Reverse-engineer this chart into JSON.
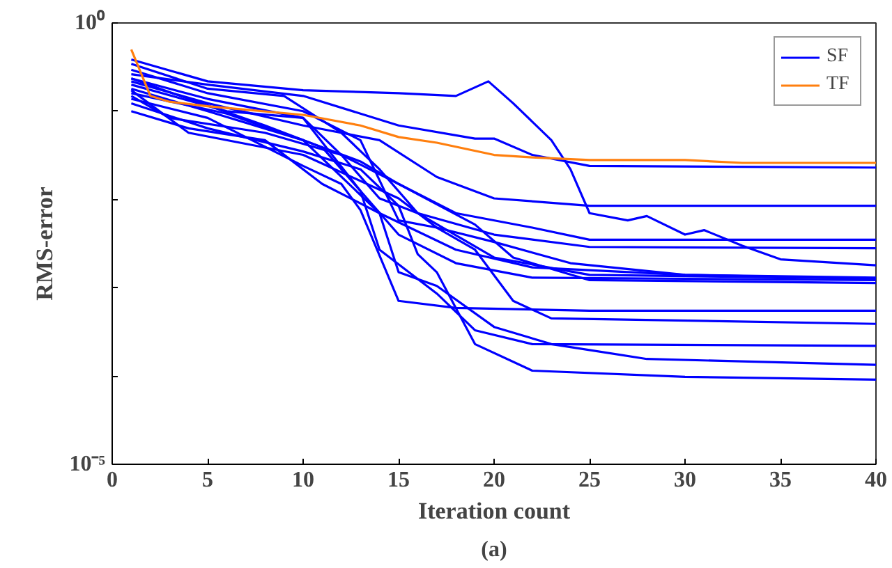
{
  "chart_data": {
    "type": "line",
    "xlabel": "Iteration count",
    "ylabel": "RMS-error",
    "annotations": [
      "(a)"
    ],
    "log": "y",
    "grid": false,
    "legend": "top right",
    "marker": "none",
    "line_style": "solid",
    "xlim": [
      0,
      40
    ],
    "xticks": [
      0,
      5,
      10,
      15,
      20,
      25,
      30,
      35,
      40
    ],
    "ylim": [
      1e-05,
      1
    ],
    "yticks": [
      {
        "value": 1,
        "label": "10⁰"
      },
      {
        "value": 0.1,
        "label": null
      },
      {
        "value": 0.01,
        "label": null
      },
      {
        "value": 0.001,
        "label": null
      },
      {
        "value": 0.0001,
        "label": null
      },
      {
        "value": 1e-05,
        "label": "10⁻⁵"
      }
    ],
    "series": [
      {
        "name": "SF",
        "color": "#0000ff",
        "x": [
          1,
          5,
          10,
          15,
          19,
          20,
          22,
          25,
          40
        ],
        "values": [
          0.263,
          0.2,
          0.149,
          0.069,
          0.049,
          0.049,
          0.032,
          0.024,
          0.023
        ]
      },
      {
        "color": "#0000ff",
        "x": [
          1,
          5,
          10,
          15,
          18,
          19.7,
          21,
          23,
          24,
          25,
          27,
          28,
          30,
          31,
          33,
          35,
          40
        ],
        "values": [
          0.386,
          0.218,
          0.173,
          0.16,
          0.149,
          0.218,
          0.123,
          0.047,
          0.022,
          0.007,
          0.0058,
          0.0065,
          0.004,
          0.0045,
          0.003,
          0.0021,
          0.0018
        ]
      },
      {
        "color": "#0000ff",
        "x": [
          1,
          5,
          10,
          14,
          17,
          20,
          25,
          40
        ],
        "values": [
          0.218,
          0.123,
          0.069,
          0.047,
          0.018,
          0.0103,
          0.0085,
          0.0085
        ]
      },
      {
        "color": "#0000ff",
        "x": [
          1,
          5,
          10,
          13,
          15,
          18,
          22,
          25,
          40
        ],
        "values": [
          0.18,
          0.1,
          0.047,
          0.027,
          0.015,
          0.007,
          0.0048,
          0.0035,
          0.0035
        ]
      },
      {
        "color": "#0000ff",
        "x": [
          1,
          3,
          8,
          12,
          14,
          16,
          20,
          25,
          40
        ],
        "values": [
          0.149,
          0.084,
          0.057,
          0.032,
          0.0103,
          0.007,
          0.004,
          0.0029,
          0.0028
        ]
      },
      {
        "color": "#0000ff",
        "x": [
          1,
          5,
          9,
          12,
          14,
          16,
          20,
          25,
          40
        ],
        "values": [
          0.344,
          0.18,
          0.149,
          0.057,
          0.022,
          0.007,
          0.0022,
          0.0014,
          0.00127
        ]
      },
      {
        "color": "#0000ff",
        "x": [
          1,
          4,
          8,
          11,
          13,
          15,
          18,
          22,
          40
        ],
        "values": [
          0.235,
          0.138,
          0.069,
          0.039,
          0.0125,
          0.004,
          0.0019,
          0.0013,
          0.00122
        ]
      },
      {
        "color": "#0000ff",
        "x": [
          1,
          6,
          10,
          12,
          15,
          19,
          21,
          25,
          40
        ],
        "values": [
          0.2,
          0.1,
          0.084,
          0.032,
          0.015,
          0.0052,
          0.0022,
          0.00122,
          0.00113
        ]
      },
      {
        "color": "#0000ff",
        "x": [
          1,
          4,
          10,
          15,
          17,
          20,
          24,
          30,
          40
        ],
        "values": [
          0.173,
          0.057,
          0.032,
          0.0103,
          0.0048,
          0.0033,
          0.0019,
          0.0014,
          0.0013
        ]
      },
      {
        "color": "#0000ff",
        "x": [
          1,
          5,
          10,
          12,
          13,
          15,
          18,
          25,
          40
        ],
        "values": [
          0.138,
          0.084,
          0.024,
          0.015,
          0.0076,
          0.00071,
          0.00059,
          0.00055,
          0.00055
        ]
      },
      {
        "color": "#0000ff",
        "x": [
          1,
          5,
          10,
          13,
          15,
          17,
          19,
          21,
          23,
          40
        ],
        "values": [
          0.295,
          0.16,
          0.1,
          0.047,
          0.0058,
          0.0048,
          0.0027,
          0.00071,
          0.00045,
          0.00039
        ]
      },
      {
        "color": "#0000ff",
        "x": [
          1,
          5,
          10,
          13,
          14,
          17,
          19,
          22,
          40
        ],
        "values": [
          0.235,
          0.138,
          0.084,
          0.0125,
          0.0027,
          0.00086,
          0.00033,
          0.00023,
          0.00022
        ]
      },
      {
        "color": "#0000ff",
        "x": [
          1,
          6,
          10,
          14,
          15,
          17,
          20,
          23,
          28,
          40
        ],
        "values": [
          0.16,
          0.094,
          0.047,
          0.007,
          0.0015,
          0.00105,
          0.00036,
          0.00023,
          0.000156,
          0.000134
        ]
      },
      {
        "color": "#0000ff",
        "x": [
          1,
          5,
          10,
          13,
          15,
          16,
          17,
          19,
          22,
          30,
          40
        ],
        "values": [
          0.123,
          0.064,
          0.035,
          0.022,
          0.0085,
          0.0024,
          0.0015,
          0.00023,
          0.000115,
          9.8e-05,
          9.1e-05
        ]
      },
      {
        "color": "#0000ff",
        "x": [
          1,
          4,
          8,
          11,
          14,
          18,
          22,
          30,
          40
        ],
        "values": [
          0.1,
          0.064,
          0.047,
          0.015,
          0.007,
          0.0027,
          0.0017,
          0.0014,
          0.00127
        ]
      },
      {
        "name": "TF",
        "color": "#ff7f0e",
        "x": [
          1,
          2,
          3,
          5,
          10,
          13,
          15,
          17,
          20,
          22,
          25,
          30,
          33,
          40
        ],
        "values": [
          0.5,
          0.149,
          0.128,
          0.114,
          0.091,
          0.069,
          0.051,
          0.044,
          0.032,
          0.03,
          0.028,
          0.028,
          0.026,
          0.026
        ]
      }
    ]
  }
}
